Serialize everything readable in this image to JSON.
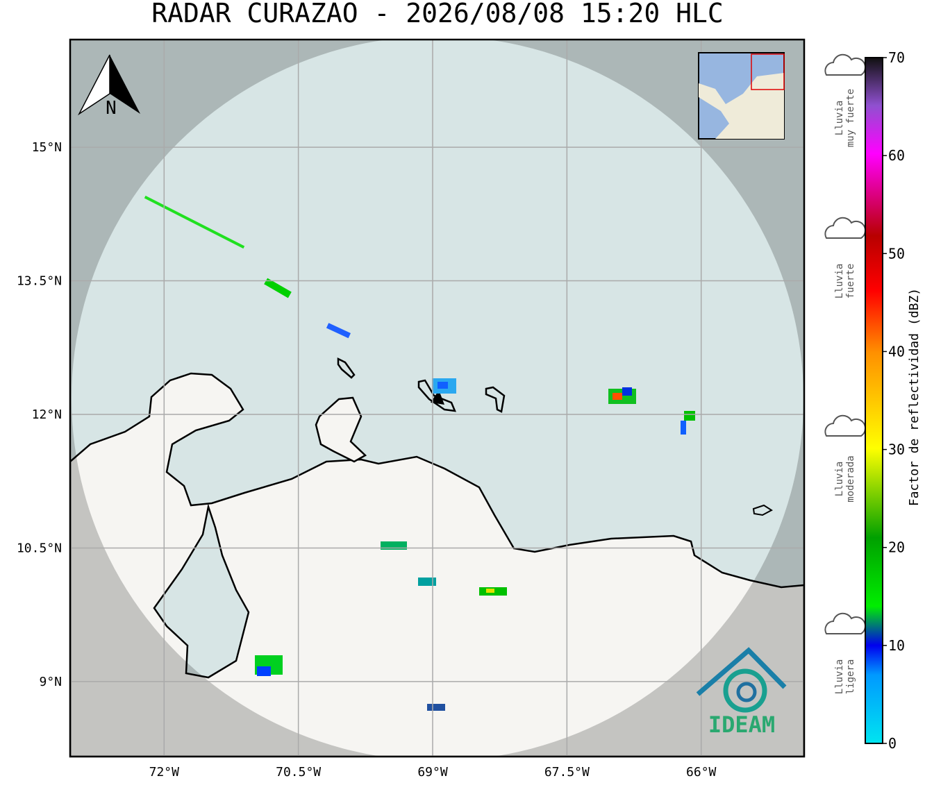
{
  "title": "RADAR CURAZAO - 2026/08/08 15:20 HLC",
  "north_label": "N",
  "logo_text": "IDEAM",
  "lat_ticks": [
    {
      "value": 15,
      "label": "15°N"
    },
    {
      "value": 13.5,
      "label": "13.5°N"
    },
    {
      "value": 12,
      "label": "12°N"
    },
    {
      "value": 10.5,
      "label": "10.5°N"
    },
    {
      "value": 9,
      "label": "9°N"
    }
  ],
  "lon_ticks": [
    {
      "value": -72,
      "label": "72°W"
    },
    {
      "value": -70.5,
      "label": "70.5°W"
    },
    {
      "value": -69,
      "label": "69°W"
    },
    {
      "value": -67.5,
      "label": "67.5°W"
    },
    {
      "value": -66,
      "label": "66°W"
    }
  ],
  "colorbar": {
    "label": "Factor de reflectividad (dBZ)",
    "lim": [
      0,
      70
    ],
    "ticks": [
      0,
      10,
      20,
      30,
      40,
      50,
      60,
      70
    ]
  },
  "rain_levels": [
    {
      "lines": [
        "Lluvia",
        "muy fuerte"
      ]
    },
    {
      "lines": [
        "Lluvia",
        "fuerte"
      ]
    },
    {
      "lines": [
        "Lluvia",
        "moderada"
      ]
    },
    {
      "lines": [
        "Lluvia",
        "ligera"
      ]
    }
  ]
}
